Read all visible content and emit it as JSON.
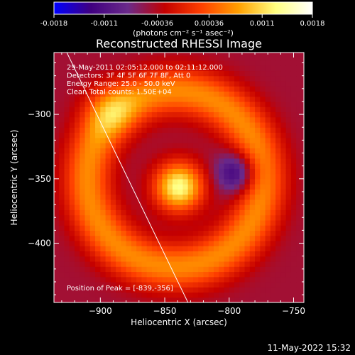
{
  "colorbar": {
    "ticks": [
      "-0.0018",
      "-0.0011",
      "-0.00036",
      "0.00036",
      "0.0011",
      "0.0018"
    ],
    "tick_values": [
      -0.0018,
      -0.0011,
      -0.00036,
      0.00036,
      0.0011,
      0.0018
    ],
    "range": [
      -0.0018,
      0.0018
    ],
    "units_label": "(photons cm⁻² s⁻¹ asec⁻²)"
  },
  "footer_timestamp": "11-May-2022 15:32",
  "chart_data": {
    "type": "heatmap",
    "title": "Reconstructed RHESSI Image",
    "xlabel": "Heliocentric X (arcsec)",
    "ylabel": "Heliocentric Y (arcsec)",
    "xlim": [
      -936,
      -742
    ],
    "ylim": [
      -446,
      -252
    ],
    "xticks": [
      -900,
      -850,
      -800,
      -750
    ],
    "xtick_labels": [
      "−900",
      "−850",
      "−800",
      "−750"
    ],
    "yticks": [
      -300,
      -350,
      -400
    ],
    "ytick_labels": [
      "−300",
      "−350",
      "−400"
    ],
    "info_lines": [
      "29-May-2011 02:05:12.000 to 02:11:12.000",
      "Detectors: 3F 4F 5F 6F 7F 8F, Att 0",
      "Energy Range: 25.0 - 50.0 keV",
      "Clean    Total counts: 1.50E+04"
    ],
    "peak_label": "Position of Peak = [-839,-356]",
    "peak": [
      -839,
      -356
    ],
    "limb_line": [
      [
        -926,
        -252
      ],
      [
        -832,
        -446
      ]
    ],
    "components": [
      {
        "type": "core",
        "x": -839,
        "y": -356,
        "amp": 0.0018,
        "sigma": 13
      },
      {
        "type": "ring",
        "x": -842,
        "y": -350,
        "radius": 68,
        "width": 13,
        "amp": 0.0011
      },
      {
        "type": "core",
        "x": -794,
        "y": -345,
        "amp": -0.00095,
        "sigma": 11
      },
      {
        "type": "core",
        "x": -893,
        "y": -296,
        "amp": 0.0006,
        "sigma": 14
      }
    ],
    "background": -0.00045,
    "pixel_size": 4,
    "colormap": [
      "#0000ff",
      "#400080",
      "#6a2a8a",
      "#c40000",
      "#ff4000",
      "#ffa000",
      "#ffff80",
      "#ffffff"
    ]
  }
}
